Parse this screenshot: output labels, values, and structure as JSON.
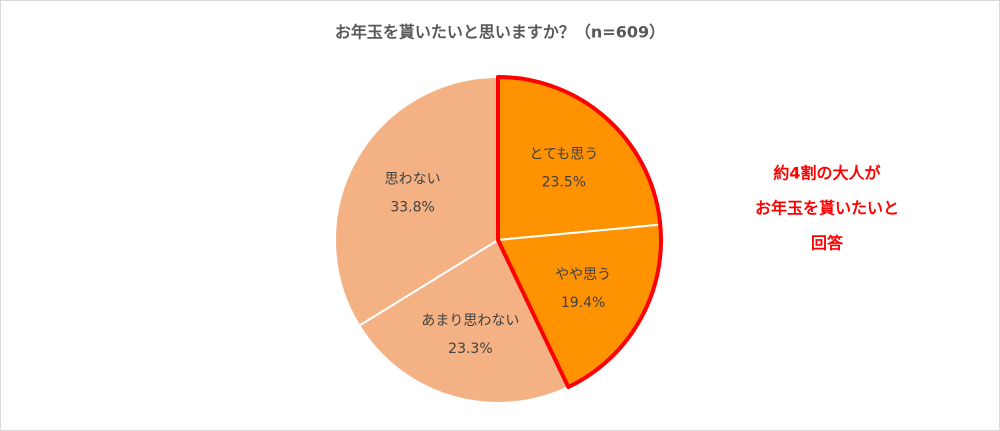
{
  "chart_data": {
    "type": "pie",
    "title": "お年玉を貰いたいと思いますか？（n=609）",
    "categories": [
      "とても思う",
      "やや思う",
      "あまり思わない",
      "思わない"
    ],
    "values": [
      23.5,
      19.4,
      23.3,
      33.8
    ],
    "value_labels": [
      "23.5%",
      "19.4%",
      "23.3%",
      "33.8%"
    ],
    "colors": [
      "#ff9200",
      "#ff9200",
      "#f4b183",
      "#f4b183"
    ],
    "highlight": [
      0,
      1
    ],
    "highlight_color": "#ff0000",
    "annotation": [
      "約4割の大人が",
      "お年玉を貰いたいと",
      "回答"
    ],
    "annotation_color": "#ff0000"
  }
}
